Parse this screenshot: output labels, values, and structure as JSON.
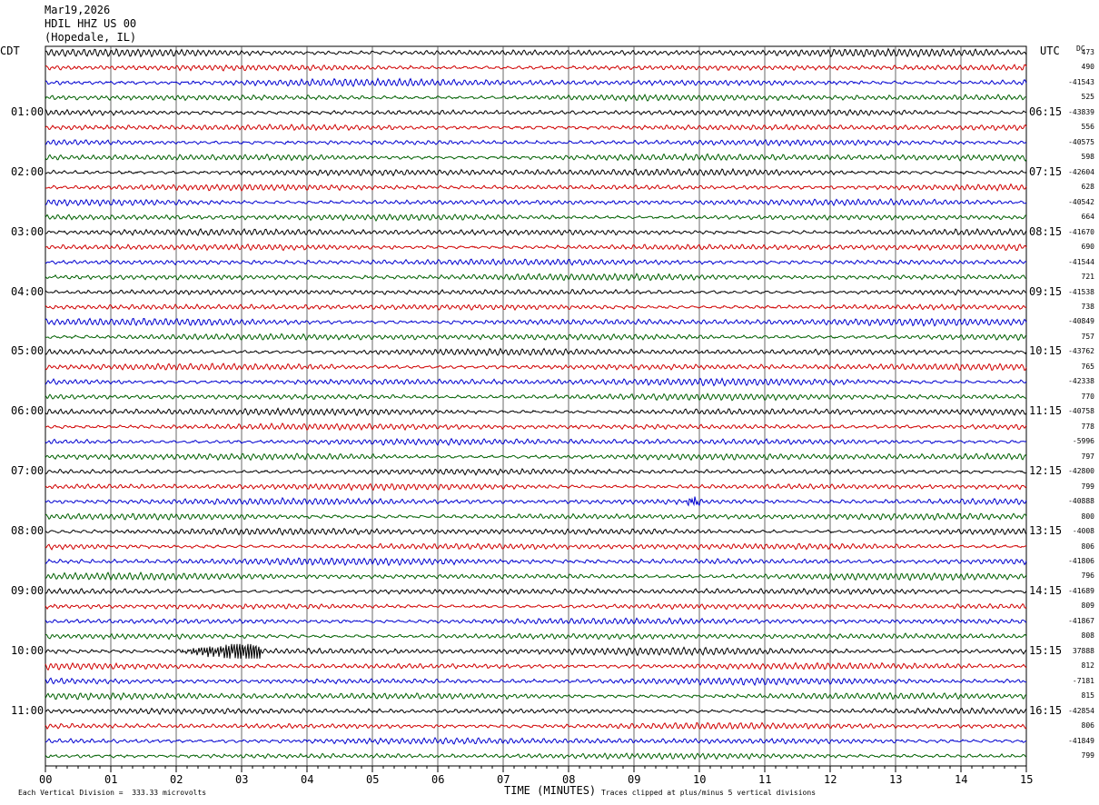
{
  "header": {
    "date": "Mar19,2026",
    "station": "HDIL HHZ US 00",
    "location": "(Hopedale, IL)"
  },
  "left_axis_label": "CDT",
  "right_axis_label": "UTC",
  "dc_label": "DC",
  "footer": {
    "scale_text": "Each Vertical Division =  333.33 microvolts",
    "clip_text": "Traces clipped at plus/minus 5 vertical divisions"
  },
  "colors": {
    "trace_cycle": [
      "#000000",
      "#d00000",
      "#0000d0",
      "#006000"
    ],
    "grid": "#000000"
  },
  "chart_data": {
    "type": "line",
    "title": "",
    "xlabel": "TIME (MINUTES)",
    "xlim": [
      0,
      15
    ],
    "x_ticks": [
      "00",
      "01",
      "02",
      "03",
      "04",
      "05",
      "06",
      "07",
      "08",
      "09",
      "10",
      "11",
      "12",
      "13",
      "14",
      "15"
    ],
    "rows_per_hour": 4,
    "row_count": 48,
    "left_time_labels": [
      {
        "row": 4,
        "label": "01:00"
      },
      {
        "row": 8,
        "label": "02:00"
      },
      {
        "row": 12,
        "label": "03:00"
      },
      {
        "row": 16,
        "label": "04:00"
      },
      {
        "row": 20,
        "label": "05:00"
      },
      {
        "row": 24,
        "label": "06:00"
      },
      {
        "row": 28,
        "label": "07:00"
      },
      {
        "row": 32,
        "label": "08:00"
      },
      {
        "row": 36,
        "label": "09:00"
      },
      {
        "row": 40,
        "label": "10:00"
      },
      {
        "row": 44,
        "label": "11:00"
      }
    ],
    "right_time_labels": [
      {
        "row": 4,
        "label": "06:15"
      },
      {
        "row": 8,
        "label": "07:15"
      },
      {
        "row": 12,
        "label": "08:15"
      },
      {
        "row": 16,
        "label": "09:15"
      },
      {
        "row": 20,
        "label": "10:15"
      },
      {
        "row": 24,
        "label": "11:15"
      },
      {
        "row": 28,
        "label": "12:15"
      },
      {
        "row": 32,
        "label": "13:15"
      },
      {
        "row": 36,
        "label": "14:15"
      },
      {
        "row": 40,
        "label": "15:15"
      },
      {
        "row": 44,
        "label": "16:15"
      }
    ],
    "dc_offsets": [
      "473",
      "490",
      "-41543",
      "525",
      "-43839",
      "556",
      "-40575",
      "598",
      "-42604",
      "628",
      "-40542",
      "664",
      "-41670",
      "690",
      "-41544",
      "721",
      "-41538",
      "738",
      "-40849",
      "757",
      "-43762",
      "765",
      "-42338",
      "770",
      "-40758",
      "778",
      "-5996",
      "797",
      "-42800",
      "799",
      "-40888",
      "800",
      "-4008",
      "806",
      "-41806",
      "796",
      "-41689",
      "809",
      "-41867",
      "808",
      "37888",
      "812",
      "-7181",
      "815",
      "-42854",
      "806",
      "-41849",
      "799"
    ],
    "events": [
      {
        "row": 40,
        "start_min": 2.0,
        "end_min": 3.3,
        "peak_min": 3.0,
        "amplitude_div": 2.5
      },
      {
        "row": 30,
        "start_min": 9.8,
        "end_min": 10.0,
        "peak_min": 9.9,
        "amplitude_div": 1.0
      }
    ]
  }
}
